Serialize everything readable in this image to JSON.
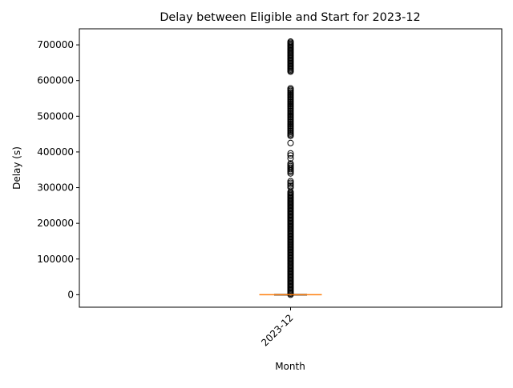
{
  "chart_data": {
    "type": "box",
    "title": "Delay between Eligible and Start for 2023-12",
    "xlabel": "Month",
    "ylabel": "Delay (s)",
    "categories": [
      "2023-12"
    ],
    "ylim": [
      -35000,
      745000
    ],
    "yticks": [
      0,
      100000,
      200000,
      300000,
      400000,
      500000,
      600000,
      700000
    ],
    "ytick_labels": [
      "0",
      "100000",
      "200000",
      "300000",
      "400000",
      "500000",
      "600000",
      "700000"
    ],
    "grid": false,
    "box": {
      "q1": 0,
      "median": 0,
      "q3": 0,
      "whisker_low": 0,
      "whisker_high": 0
    },
    "outliers": [
      {
        "from": 0,
        "to": 290000,
        "step": 3000
      },
      {
        "from": 300000,
        "to": 318000,
        "step": 4500
      },
      {
        "from": 340000,
        "to": 370000,
        "step": 4000
      },
      {
        "values": [
          382000,
          390000,
          396000,
          425000
        ]
      },
      {
        "from": 445000,
        "to": 578000,
        "step": 3500
      },
      {
        "from": 625000,
        "to": 710000,
        "step": 3000
      }
    ],
    "colors": {
      "median": "#ff7f0e",
      "box": "#000000",
      "outlier_edge": "#000000"
    }
  }
}
